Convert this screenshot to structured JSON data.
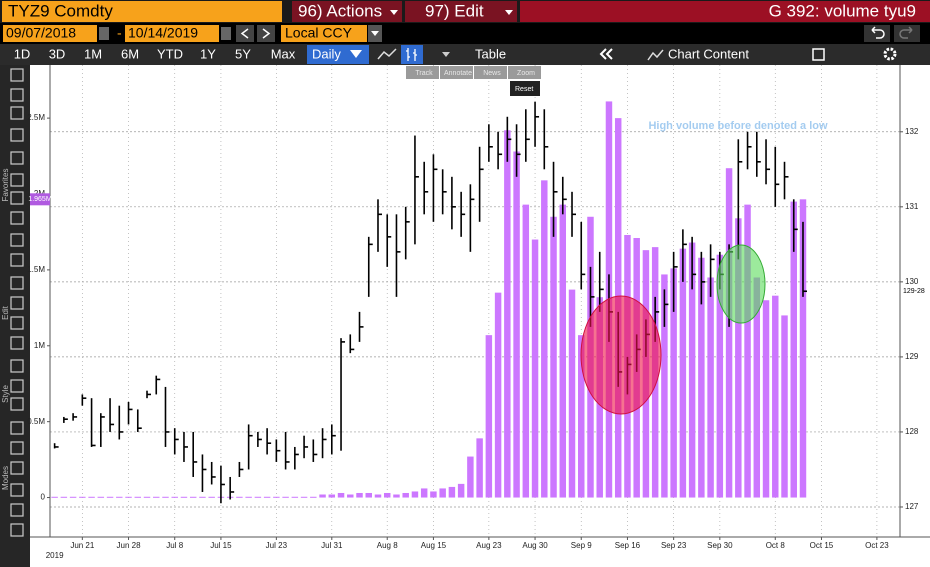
{
  "ui": {
    "security": "TYZ9 Comdty",
    "actions": "96) Actions",
    "edit": "97) Edit",
    "function": "G 392: volume tyu9",
    "start_date": "09/07/2018",
    "date_separator": "-",
    "end_date": "10/14/2019",
    "currency": "Local CCY",
    "periods": [
      "1D",
      "3D",
      "1M",
      "6M",
      "YTD",
      "1Y",
      "5Y",
      "Max"
    ],
    "frequency": "Daily",
    "table": "Table",
    "chart_content": "Chart Content",
    "chart_tools": [
      "Track",
      "Annotate",
      "News",
      "Zoom"
    ],
    "reset": "Reset",
    "sidebar": [
      "Favorites",
      "Edit",
      "Style",
      "Modes"
    ]
  },
  "chart_data": {
    "type": "combo",
    "annotation": "High volume before denoted a low",
    "year_label": "2019",
    "categories": [
      null,
      null,
      null,
      "Jun 21",
      null,
      null,
      null,
      null,
      "Jun 28",
      null,
      null,
      null,
      null,
      "Jul 8",
      null,
      null,
      null,
      null,
      "Jul 15",
      null,
      null,
      null,
      null,
      null,
      "Jul 23",
      null,
      null,
      null,
      null,
      null,
      "Jul 31",
      null,
      null,
      null,
      null,
      null,
      "Aug 8",
      null,
      null,
      null,
      null,
      "Aug 15",
      null,
      null,
      null,
      null,
      null,
      "Aug 23",
      null,
      null,
      null,
      null,
      "Aug 30",
      null,
      null,
      null,
      null,
      "Sep 9",
      null,
      null,
      null,
      null,
      "Sep 16",
      null,
      null,
      null,
      null,
      "Sep 23",
      null,
      null,
      null,
      null,
      "Sep 30",
      null,
      null,
      null,
      null,
      null,
      "Oct 8",
      null,
      null,
      null,
      null,
      "Oct 15",
      null,
      null,
      null,
      null,
      null,
      "Oct 23",
      null,
      null
    ],
    "ylim": [
      -0.26,
      2.85
    ],
    "yticks": [
      0,
      {
        "value": 0.5,
        "label": "0.5M"
      },
      {
        "value": 1,
        "label": "1M"
      },
      {
        "value": 1.5,
        "label": "1.5M"
      },
      {
        "value": 2,
        "label": "2M"
      },
      {
        "value": 2.5,
        "label": "2.5M"
      }
    ],
    "y2lim": [
      126.6,
      132.89
    ],
    "y2ticks": [
      127,
      128,
      129,
      130,
      131,
      132
    ],
    "grid": true,
    "series": [
      {
        "type": "bar",
        "color": "#cc77ff",
        "last_label": "1.965M",
        "values": [
          0.005,
          0.005,
          0.005,
          0.005,
          0.005,
          0.005,
          0.005,
          0.005,
          0.005,
          0.005,
          0.005,
          0.005,
          0.005,
          0.005,
          0.005,
          0.005,
          0.005,
          0.005,
          0.005,
          0.005,
          0.005,
          0.005,
          0.005,
          0.005,
          0.005,
          0.005,
          0.005,
          0.005,
          0.005,
          0.02,
          0.02,
          0.03,
          0.02,
          0.03,
          0.03,
          0.02,
          0.03,
          0.02,
          0.03,
          0.04,
          0.06,
          0.04,
          0.06,
          0.07,
          0.09,
          0.27,
          0.39,
          1.07,
          1.35,
          2.42,
          2.28,
          1.93,
          1.7,
          2.09,
          1.85,
          1.93,
          1.37,
          1.07,
          1.85,
          1.32,
          2.61,
          2.5,
          1.73,
          1.71,
          1.63,
          1.65,
          1.47,
          1.51,
          1.64,
          1.68,
          1.58,
          1.45,
          1.6,
          2.17,
          1.84,
          1.93,
          1.45,
          1.3,
          1.33,
          1.2,
          1.95,
          1.965,
          null,
          null,
          null,
          null,
          null,
          null,
          null,
          null,
          null,
          null
        ]
      },
      {
        "type": "hlc",
        "axis": "y2",
        "color": "#000000",
        "last_label": "129-28",
        "high": [
          127.85,
          128.2,
          128.25,
          128.5,
          128.45,
          128.25,
          128.45,
          128.35,
          128.4,
          128.3,
          128.55,
          128.75,
          128.6,
          128.05,
          128.0,
          128.0,
          127.7,
          127.6,
          127.55,
          127.4,
          127.6,
          128.1,
          128.0,
          128.05,
          127.9,
          128.0,
          127.8,
          127.95,
          127.9,
          128.05,
          128.1,
          129.25,
          129.3,
          129.6,
          130.6,
          131.1,
          130.9,
          130.9,
          131.0,
          131.95,
          131.6,
          131.7,
          131.5,
          131.4,
          131.2,
          131.3,
          131.8,
          132.1,
          132.0,
          132.2,
          132.1,
          132.3,
          132.4,
          132.3,
          131.6,
          131.4,
          131.2,
          130.8,
          130.2,
          130.4,
          130.1,
          129.6,
          129.0,
          129.3,
          129.5,
          129.8,
          129.9,
          130.4,
          130.7,
          130.6,
          130.4,
          130.5,
          130.4,
          130.5,
          131.9,
          132.0,
          132.0,
          131.9,
          131.8,
          131.6,
          131.1,
          130.8,
          null,
          null,
          null,
          null,
          null,
          null,
          null,
          null,
          null,
          null
        ],
        "low": [
          127.78,
          128.12,
          128.15,
          128.35,
          127.8,
          127.8,
          128.0,
          127.9,
          128.1,
          128.0,
          128.45,
          128.5,
          127.8,
          127.7,
          127.6,
          127.4,
          127.2,
          127.3,
          127.05,
          127.1,
          127.4,
          127.5,
          127.8,
          127.7,
          127.6,
          127.5,
          127.5,
          127.65,
          127.6,
          127.65,
          127.7,
          127.75,
          129.05,
          129.2,
          129.8,
          130.4,
          130.2,
          129.8,
          130.3,
          130.5,
          130.9,
          130.8,
          130.9,
          130.7,
          130.6,
          130.4,
          130.8,
          131.6,
          131.5,
          131.6,
          131.4,
          131.6,
          131.8,
          131.5,
          130.6,
          130.9,
          130.6,
          129.9,
          129.4,
          129.6,
          129.2,
          128.6,
          128.5,
          128.8,
          129.0,
          129.2,
          129.4,
          129.6,
          130.0,
          129.9,
          129.7,
          129.8,
          129.9,
          129.4,
          130.3,
          131.5,
          131.4,
          131.3,
          131.0,
          131.1,
          130.4,
          129.8,
          null,
          null,
          null,
          null,
          null,
          null,
          null,
          null,
          null,
          null
        ],
        "close": [
          127.8,
          128.17,
          128.2,
          128.45,
          127.82,
          128.2,
          128.1,
          128.0,
          128.3,
          128.05,
          128.5,
          128.7,
          128.0,
          127.9,
          127.8,
          127.6,
          127.5,
          127.4,
          127.3,
          127.2,
          127.5,
          127.95,
          127.9,
          127.85,
          127.75,
          127.6,
          127.7,
          127.8,
          127.7,
          127.9,
          127.95,
          129.2,
          129.1,
          129.4,
          130.5,
          130.9,
          130.6,
          130.4,
          130.8,
          131.4,
          131.2,
          131.5,
          131.2,
          131.0,
          130.9,
          131.1,
          131.5,
          131.8,
          131.7,
          131.9,
          131.7,
          131.9,
          132.2,
          131.8,
          131.2,
          131.1,
          130.9,
          130.1,
          129.8,
          129.9,
          129.6,
          128.8,
          128.9,
          129.1,
          129.3,
          129.6,
          129.7,
          130.2,
          130.5,
          130.1,
          130.0,
          130.3,
          130.1,
          130.4,
          131.6,
          131.8,
          131.6,
          131.5,
          131.3,
          131.4,
          130.7,
          129.875,
          null,
          null,
          null,
          null,
          null,
          null,
          null,
          null,
          null,
          null
        ]
      }
    ]
  }
}
